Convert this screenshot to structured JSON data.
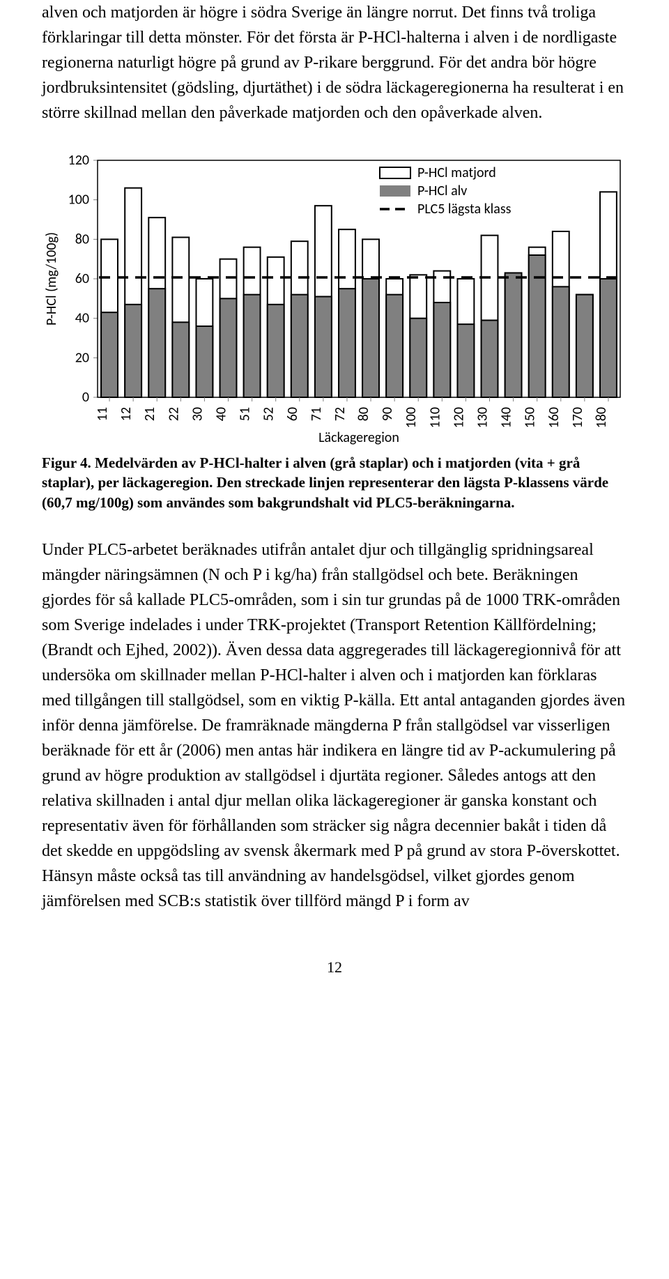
{
  "paragraph1": "alven och matjorden är högre i södra Sverige än längre norrut. Det finns två troliga förklaringar till detta mönster. För det första är P-HCl-halterna i alven i de nordligaste regionerna naturligt högre på grund av P-rikare berggrund. För det andra bör högre jordbruksintensitet (gödsling, djurtäthet) i de södra läckageregionerna ha resulterat i en större skillnad mellan den påverkade matjorden och den opåverkade alven.",
  "paragraph2": "Under PLC5-arbetet beräknades utifrån antalet djur och tillgänglig spridningsareal mängder näringsämnen (N och P i kg/ha) från stallgödsel och bete. Beräkningen gjordes för så kallade PLC5-områden, som i sin tur grundas på de 1000 TRK-områden som Sverige indelades i under TRK-projektet (Transport Retention Källfördelning; (Brandt och Ejhed, 2002)). Även dessa data aggregerades till läckageregionnivå för att undersöka om skillnader mellan P-HCl-halter i alven och i matjorden kan förklaras med tillgången till stallgödsel, som en viktig P-källa. Ett antal antaganden gjordes även inför denna jämförelse. De framräknade mängderna P från stallgödsel var visserligen beräknade för ett år (2006) men antas här indikera en längre tid av P-ackumulering på grund av högre produktion av stallgödsel i djurtäta regioner. Således antogs att den relativa skillnaden i antal djur mellan olika läckageregioner är ganska konstant och representativ även för förhållanden som sträcker sig några decennier bakåt i tiden då det skedde en uppgödsling av svensk åkermark med P på grund av stora P-överskottet. Hänsyn måste också tas till användning av handelsgödsel, vilket gjordes genom jämförelsen med SCB:s statistik över tillförd mängd P i form av",
  "caption": "Figur 4. Medelvärden av P-HCl-halter i alven (grå staplar) och i matjorden (vita + grå staplar), per läckageregion. Den streckade linjen representerar den lägsta P-klassens värde (60,7 mg/100g) som användes som bakgrundshalt vid PLC5-beräkningarna.",
  "page_number": "12",
  "chart": {
    "type": "bar",
    "y_axis_label": "P-HCl (mg/100g)",
    "x_axis_label": "Läckageregion",
    "ylim": [
      0,
      120
    ],
    "ytick_step": 20,
    "yticks": [
      0,
      20,
      40,
      60,
      80,
      100,
      120
    ],
    "categories": [
      "11",
      "12",
      "21",
      "22",
      "30",
      "40",
      "51",
      "52",
      "60",
      "71",
      "72",
      "80",
      "90",
      "100",
      "110",
      "120",
      "130",
      "140",
      "150",
      "160",
      "170",
      "180"
    ],
    "matjord_values": [
      80,
      106,
      91,
      81,
      60,
      70,
      76,
      71,
      79,
      97,
      85,
      80,
      60,
      62,
      64,
      60,
      82,
      62,
      76,
      84,
      52,
      104
    ],
    "alv_values": [
      43,
      47,
      55,
      38,
      36,
      50,
      52,
      47,
      52,
      51,
      55,
      60,
      52,
      40,
      48,
      37,
      39,
      63,
      72,
      56,
      52,
      60
    ],
    "reference_line": 60.7,
    "colors": {
      "matjord_fill": "#ffffff",
      "matjord_stroke": "#000000",
      "alv_fill": "#808080",
      "alv_stroke": "#000000",
      "axis": "#000000",
      "tick_mark": "#808080",
      "dash": "#000000",
      "background": "#ffffff"
    },
    "legend": {
      "matjord": "P-HCl matjord",
      "alv": "P-HCl alv",
      "ref": "PLC5 lägsta klass"
    },
    "bar_width_ratio": 0.7,
    "stroke_width": 2,
    "dash_pattern": "16 10",
    "font_family": "Calibri, Arial, sans-serif",
    "tick_fontsize": 20,
    "label_fontsize": 20,
    "legend_fontsize": 20
  }
}
